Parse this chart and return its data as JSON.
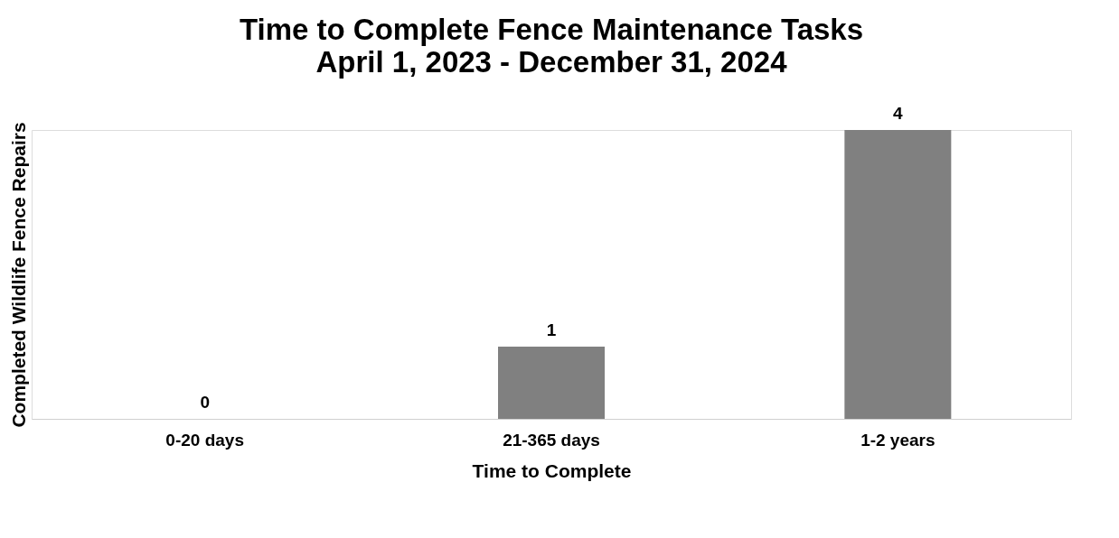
{
  "chart_data": {
    "type": "bar",
    "title": "Time to Complete Fence Maintenance Tasks",
    "subtitle": "April 1, 2023 - December 31, 2024",
    "xlabel": "Time to Complete",
    "ylabel": "Completed Wildlife Fence Repairs",
    "categories": [
      "0-20 days",
      "21-365 days",
      "1-2 years"
    ],
    "values": [
      0,
      1,
      4
    ],
    "color": "#808080",
    "data_labels": true,
    "grid": false
  }
}
